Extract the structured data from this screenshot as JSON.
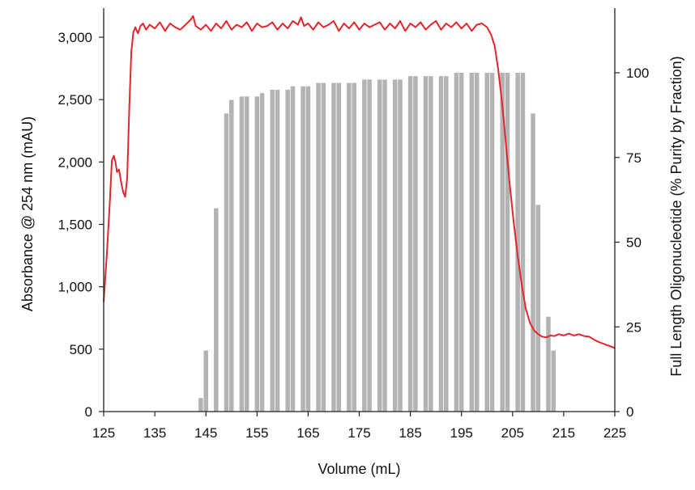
{
  "chart_data": {
    "type": "bar+line",
    "xlabel": "Volume (mL)",
    "ylabel_left": "Absorbance @ 254 nm (mAU)",
    "ylabel_right": "Full Length Oligonucleotide (% Purity by Fraction)",
    "xlim": [
      125,
      225
    ],
    "ylim_left": [
      0,
      3000
    ],
    "ylim_right": [
      0,
      100
    ],
    "x_ticks": [
      125,
      135,
      145,
      155,
      165,
      175,
      185,
      195,
      205,
      215,
      225
    ],
    "x_tick_labels": [
      "125",
      "135",
      "145",
      "155",
      "165",
      "175",
      "185",
      "195",
      "205",
      "215",
      "225"
    ],
    "y_left_ticks": [
      0,
      500,
      1000,
      1500,
      2000,
      2500,
      3000
    ],
    "y_left_tick_labels": [
      "0",
      "500",
      "1,000",
      "1,500",
      "2,000",
      "2,500",
      "3,000"
    ],
    "y_right_ticks": [
      0,
      25,
      50,
      75,
      100
    ],
    "y_right_tick_labels": [
      "0",
      "25",
      "50",
      "75",
      "100"
    ],
    "grid": false,
    "legend": "none",
    "series": [
      {
        "kind": "bar",
        "axis": "right",
        "color": "#b3b3b3",
        "x": [
          144,
          145,
          147,
          149,
          150,
          152,
          153,
          155,
          156,
          158,
          159,
          161,
          162,
          164,
          165,
          167,
          168,
          170,
          171,
          173,
          174,
          176,
          177,
          179,
          180,
          182,
          183,
          185,
          186,
          188,
          189,
          191,
          192,
          194,
          195,
          197,
          198,
          200,
          201,
          203,
          204,
          206,
          207,
          209,
          210,
          212,
          213
        ],
        "values": [
          4,
          18,
          60,
          88,
          92,
          93,
          93,
          93,
          94,
          95,
          95,
          95,
          96,
          96,
          96,
          97,
          97,
          97,
          97,
          97,
          97,
          98,
          98,
          98,
          98,
          98,
          98,
          99,
          99,
          99,
          99,
          99,
          99,
          100,
          100,
          100,
          100,
          100,
          100,
          100,
          100,
          100,
          100,
          88,
          61,
          28,
          18
        ]
      },
      {
        "kind": "line",
        "axis": "left",
        "color": "#e3262c",
        "x": [
          125,
          125.6,
          126.2,
          126.6,
          127.0,
          127.3,
          127.6,
          128.0,
          128.4,
          128.8,
          129.2,
          129.6,
          130.0,
          130.4,
          130.8,
          131.2,
          131.7,
          132.2,
          132.7,
          133.3,
          134,
          135,
          136,
          137,
          138,
          139,
          140,
          141,
          142,
          142.5,
          143,
          144,
          145,
          146,
          147,
          148,
          149,
          150,
          151,
          152,
          153,
          154,
          155,
          156,
          157,
          158,
          159,
          160,
          161,
          162,
          163,
          163.6,
          164.2,
          165,
          166,
          167,
          168,
          169,
          170,
          171,
          172,
          173,
          174,
          175,
          176,
          177,
          178,
          179,
          180,
          181,
          182,
          183,
          184,
          185,
          186,
          187,
          188,
          189,
          190,
          191,
          192,
          193,
          194,
          195,
          196,
          197,
          198,
          199,
          200,
          200.8,
          201.5,
          202.2,
          203,
          203.8,
          204.5,
          205.2,
          206,
          206.8,
          207.6,
          208.4,
          209.2,
          210,
          210.8,
          211.6,
          212.4,
          213.2,
          214,
          215,
          216,
          217,
          218,
          219,
          220,
          221,
          222,
          223,
          224,
          225
        ],
        "values": [
          880,
          1250,
          1680,
          2010,
          2050,
          2000,
          1920,
          1940,
          1840,
          1760,
          1720,
          1870,
          2430,
          2880,
          3040,
          3080,
          3030,
          3090,
          3110,
          3060,
          3100,
          3070,
          3120,
          3050,
          3110,
          3080,
          3060,
          3100,
          3140,
          3170,
          3090,
          3060,
          3100,
          3050,
          3110,
          3070,
          3130,
          3060,
          3100,
          3080,
          3120,
          3050,
          3110,
          3080,
          3090,
          3120,
          3060,
          3110,
          3070,
          3130,
          3100,
          3160,
          3090,
          3110,
          3060,
          3120,
          3080,
          3100,
          3130,
          3050,
          3110,
          3070,
          3120,
          3060,
          3110,
          3080,
          3100,
          3120,
          3060,
          3110,
          3070,
          3130,
          3050,
          3110,
          3080,
          3120,
          3060,
          3100,
          3130,
          3060,
          3110,
          3080,
          3120,
          3070,
          3110,
          3050,
          3100,
          3110,
          3080,
          3020,
          2930,
          2740,
          2450,
          2100,
          1800,
          1520,
          1250,
          1010,
          820,
          710,
          650,
          620,
          600,
          595,
          610,
          605,
          620,
          610,
          625,
          610,
          620,
          605,
          600,
          575,
          555,
          540,
          525,
          510
        ]
      }
    ]
  }
}
